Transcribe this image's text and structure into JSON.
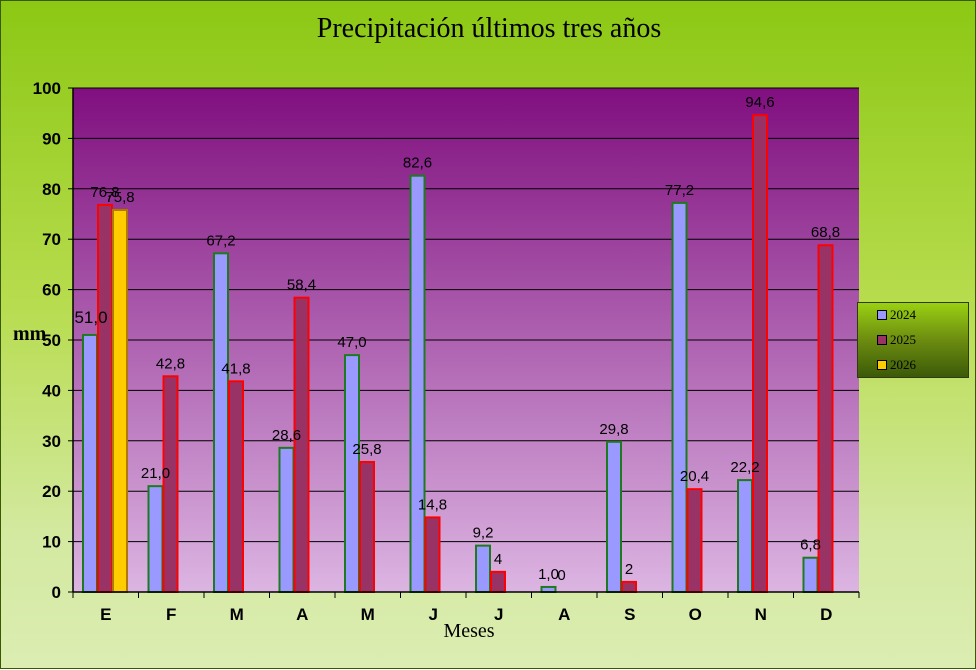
{
  "chart_data": {
    "type": "bar",
    "title": "Precipitación últimos tres años",
    "xlabel": "Meses",
    "ylabel": "mm",
    "categories": [
      "E",
      "F",
      "M",
      "A",
      "M",
      "J",
      "J",
      "A",
      "S",
      "O",
      "N",
      "D"
    ],
    "ylim": [
      0,
      100
    ],
    "yticks": [
      0,
      10,
      20,
      30,
      40,
      50,
      60,
      70,
      80,
      90,
      100
    ],
    "grid": true,
    "legend_position": "right",
    "series": [
      {
        "name": "2024",
        "color": "#9999ff",
        "border": "#1e7a1e",
        "values": [
          51.0,
          21.0,
          67.2,
          28.6,
          47.0,
          82.6,
          9.2,
          1.0,
          29.8,
          77.2,
          22.2,
          6.8
        ],
        "labels": [
          "51,0",
          "21,0",
          "67,2",
          "28,6",
          "47,0",
          "82,6",
          "9,2",
          "1,0",
          "29,8",
          "77,2",
          "22,2",
          "6,8"
        ]
      },
      {
        "name": "2025",
        "color": "#993366",
        "border": "#ff0000",
        "values": [
          76.8,
          42.8,
          41.8,
          58.4,
          25.8,
          14.8,
          4,
          0,
          2,
          20.4,
          94.6,
          68.8
        ],
        "labels": [
          "76,8",
          "42,8",
          "41,8",
          "58,4",
          "25,8",
          "14,8",
          "4",
          "0",
          "2",
          "20,4",
          "94,6",
          "68,8"
        ]
      },
      {
        "name": "2026",
        "color": "#ffcc00",
        "border": "#b07800",
        "values": [
          75.8,
          null,
          null,
          null,
          null,
          null,
          null,
          null,
          null,
          null,
          null,
          null
        ],
        "labels": [
          "75,8",
          "",
          "",
          "",
          "",
          "",
          "",
          "",
          "",
          "",
          "",
          ""
        ]
      }
    ],
    "plot_background": [
      "#800f7f",
      "#dcb5e2"
    ]
  }
}
